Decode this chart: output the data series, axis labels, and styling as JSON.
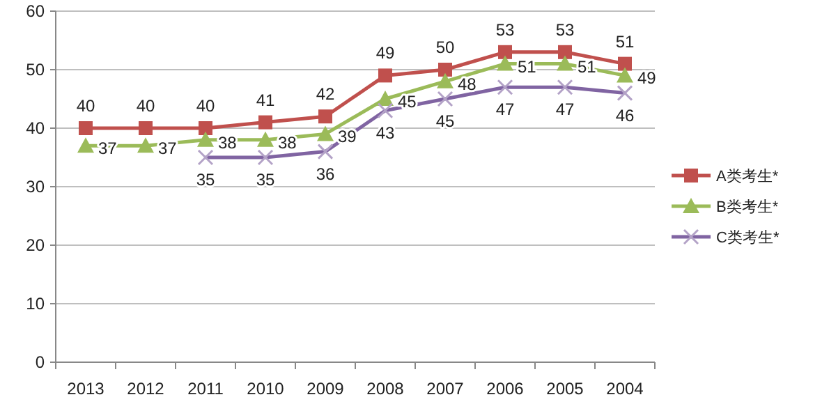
{
  "chart_data": {
    "type": "line",
    "categories": [
      "2013",
      "2012",
      "2011",
      "2010",
      "2009",
      "2008",
      "2007",
      "2006",
      "2005",
      "2004"
    ],
    "series": [
      {
        "name": "A类考生*",
        "color": "#c0504d",
        "marker": "square",
        "values": [
          40,
          40,
          40,
          41,
          42,
          49,
          50,
          53,
          53,
          51
        ]
      },
      {
        "name": "B类考生*",
        "color": "#9bbb59",
        "marker": "triangle",
        "values": [
          37,
          37,
          38,
          38,
          39,
          45,
          48,
          51,
          51,
          49
        ]
      },
      {
        "name": "C类考生*",
        "color": "#8064a2",
        "marker": "cross",
        "values": [
          null,
          null,
          35,
          35,
          36,
          43,
          45,
          47,
          47,
          46
        ]
      }
    ],
    "ylim": [
      0,
      60
    ],
    "yticks": [
      0,
      10,
      20,
      30,
      40,
      50,
      60
    ],
    "grid": "y",
    "legend": "right",
    "data_labels": true
  }
}
